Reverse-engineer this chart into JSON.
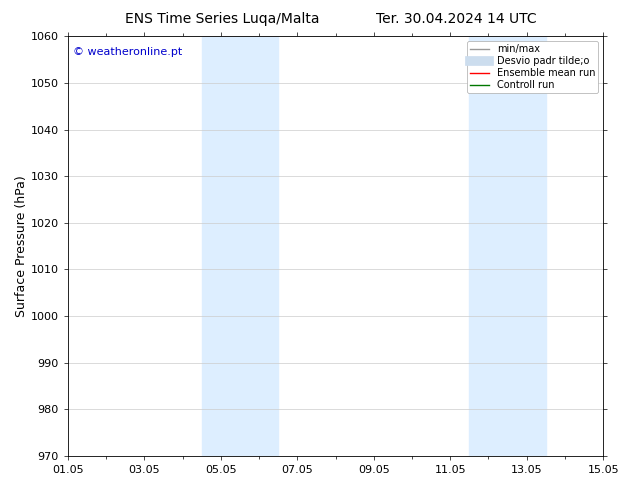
{
  "title_left": "ENS Time Series Luqa/Malta",
  "title_right": "Ter. 30.04.2024 14 UTC",
  "ylabel": "Surface Pressure (hPa)",
  "ylim": [
    970,
    1060
  ],
  "yticks": [
    970,
    980,
    990,
    1000,
    1010,
    1020,
    1030,
    1040,
    1050,
    1060
  ],
  "xtick_labels": [
    "01.05",
    "03.05",
    "05.05",
    "07.05",
    "09.05",
    "11.05",
    "13.05",
    "15.05"
  ],
  "xtick_positions": [
    0,
    2,
    4,
    6,
    8,
    10,
    12,
    14
  ],
  "x_total_days": 14,
  "shade_bands": [
    {
      "x_start": 3.5,
      "x_end": 5.5,
      "color": "#ddeeff"
    },
    {
      "x_start": 10.5,
      "x_end": 12.5,
      "color": "#ddeeff"
    }
  ],
  "watermark_text": "© weatheronline.pt",
  "watermark_color": "#0000cc",
  "legend_entries": [
    {
      "label": "min/max",
      "color": "#999999",
      "lw": 1.0,
      "style": "solid"
    },
    {
      "label": "Desvio padr tilde;o",
      "color": "#ccddee",
      "lw": 7,
      "style": "solid"
    },
    {
      "label": "Ensemble mean run",
      "color": "#ff0000",
      "lw": 1.0,
      "style": "solid"
    },
    {
      "label": "Controll run",
      "color": "#007700",
      "lw": 1.0,
      "style": "solid"
    }
  ],
  "background_color": "#ffffff",
  "grid_color": "#cccccc",
  "title_fontsize": 10,
  "tick_fontsize": 8,
  "ylabel_fontsize": 9,
  "watermark_fontsize": 8,
  "legend_fontsize": 7
}
